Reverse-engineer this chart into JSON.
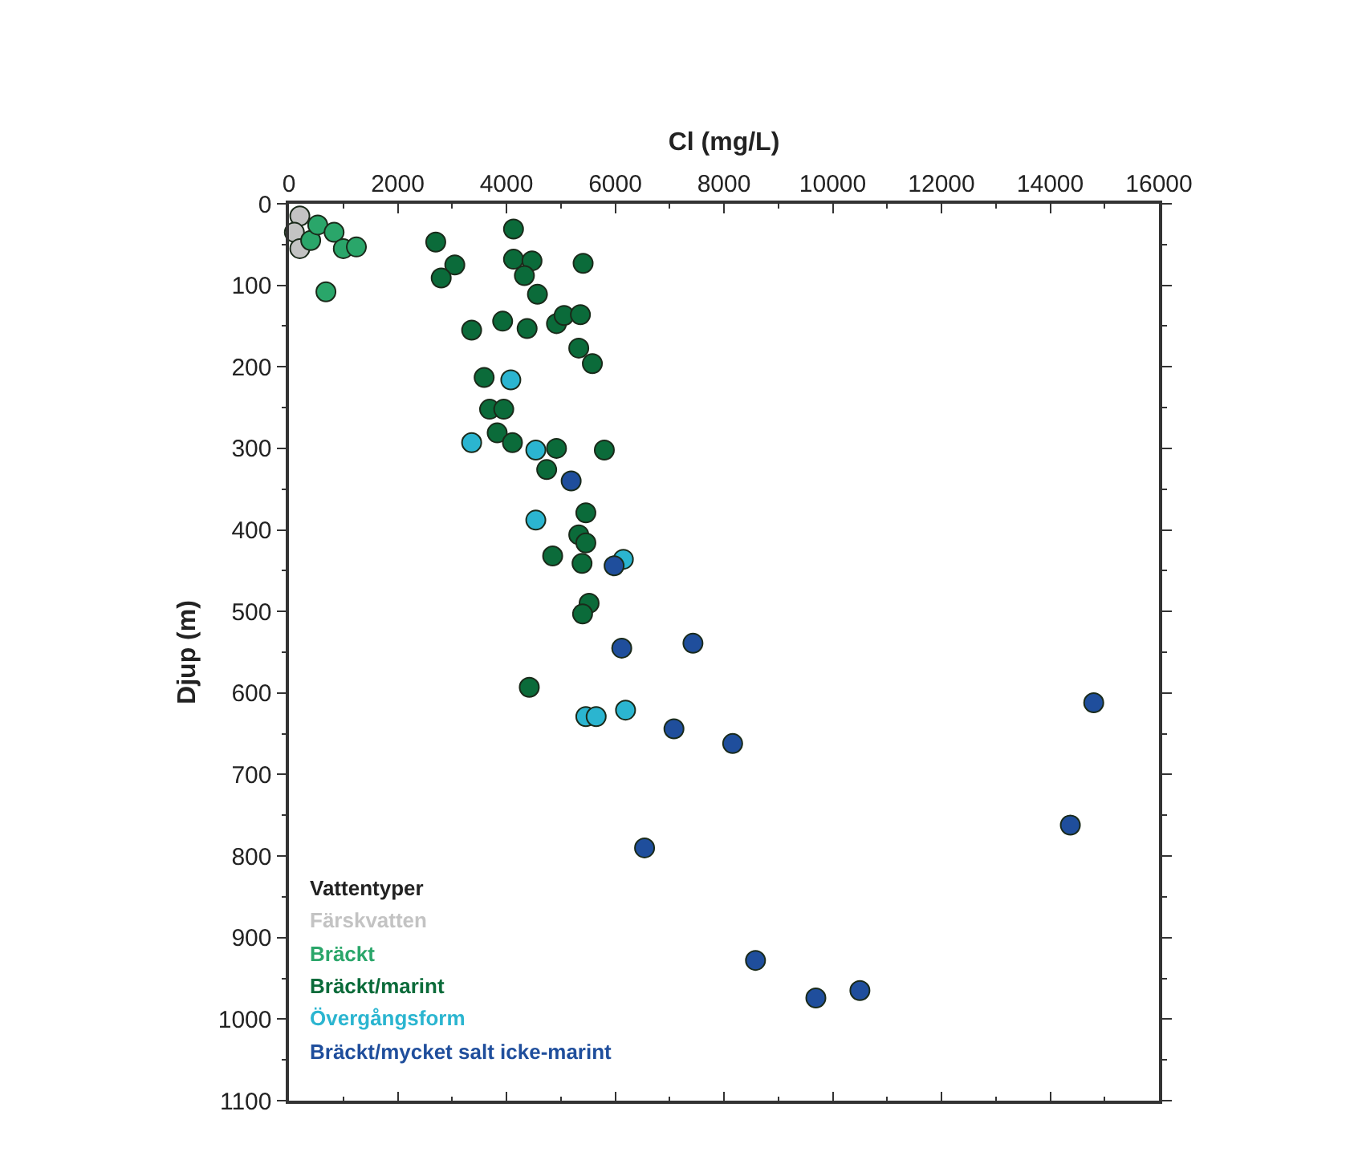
{
  "chart_data": {
    "type": "scatter",
    "xlabel": "Cl (mg/L)",
    "ylabel": "Djup (m)",
    "legend_title": "Vattentyper",
    "legend": "bottom left",
    "marker": "circle",
    "grid": false,
    "xlim": [
      0,
      16000
    ],
    "xticks": [
      0,
      2000,
      4000,
      6000,
      8000,
      10000,
      12000,
      14000,
      16000
    ],
    "ylim": [
      1100,
      0
    ],
    "yticks": [
      0,
      100,
      200,
      300,
      400,
      500,
      600,
      700,
      800,
      900,
      1000,
      1100
    ],
    "series": [
      {
        "name": "Färskvatten",
        "color": "#c3c3c3",
        "x": [
          200,
          100,
          200
        ],
        "values": [
          15,
          35,
          55
        ]
      },
      {
        "name": "Bräckt",
        "color": "#2aa66a",
        "x": [
          400,
          530,
          830,
          1000,
          1240,
          680
        ],
        "values": [
          45,
          26,
          35,
          55,
          53,
          108
        ]
      },
      {
        "name": "Bräckt/marint",
        "color": "#0b6b3a",
        "x": [
          4130,
          2700,
          3050,
          2800,
          4130,
          4470,
          4330,
          4570,
          5410,
          3360,
          3930,
          4380,
          4920,
          5060,
          5360,
          5330,
          5580,
          3590,
          3690,
          3950,
          3830,
          4110,
          4920,
          4740,
          5800,
          5460,
          5330,
          5460,
          4850,
          5390,
          5520,
          5400,
          4420
        ],
        "values": [
          31,
          47,
          75,
          91,
          68,
          70,
          88,
          111,
          73,
          155,
          144,
          153,
          147,
          137,
          136,
          177,
          196,
          213,
          252,
          252,
          281,
          293,
          300,
          326,
          302,
          379,
          406,
          416,
          432,
          441,
          490,
          503,
          593
        ]
      },
      {
        "name": "Övergångsform",
        "color": "#2bb5d0",
        "x": [
          4080,
          3360,
          4540,
          4540,
          6150,
          5460,
          5650,
          6190
        ],
        "values": [
          216,
          293,
          302,
          388,
          436,
          629,
          629,
          621
        ]
      },
      {
        "name": "Bräckt/mycket salt icke-marint",
        "color": "#1f4e9c",
        "x": [
          5190,
          5980,
          6120,
          7430,
          7080,
          8160,
          6540,
          8580,
          9690,
          10500,
          14370,
          14800
        ],
        "values": [
          340,
          444,
          545,
          539,
          644,
          662,
          790,
          928,
          974,
          965,
          762,
          612
        ]
      }
    ]
  }
}
